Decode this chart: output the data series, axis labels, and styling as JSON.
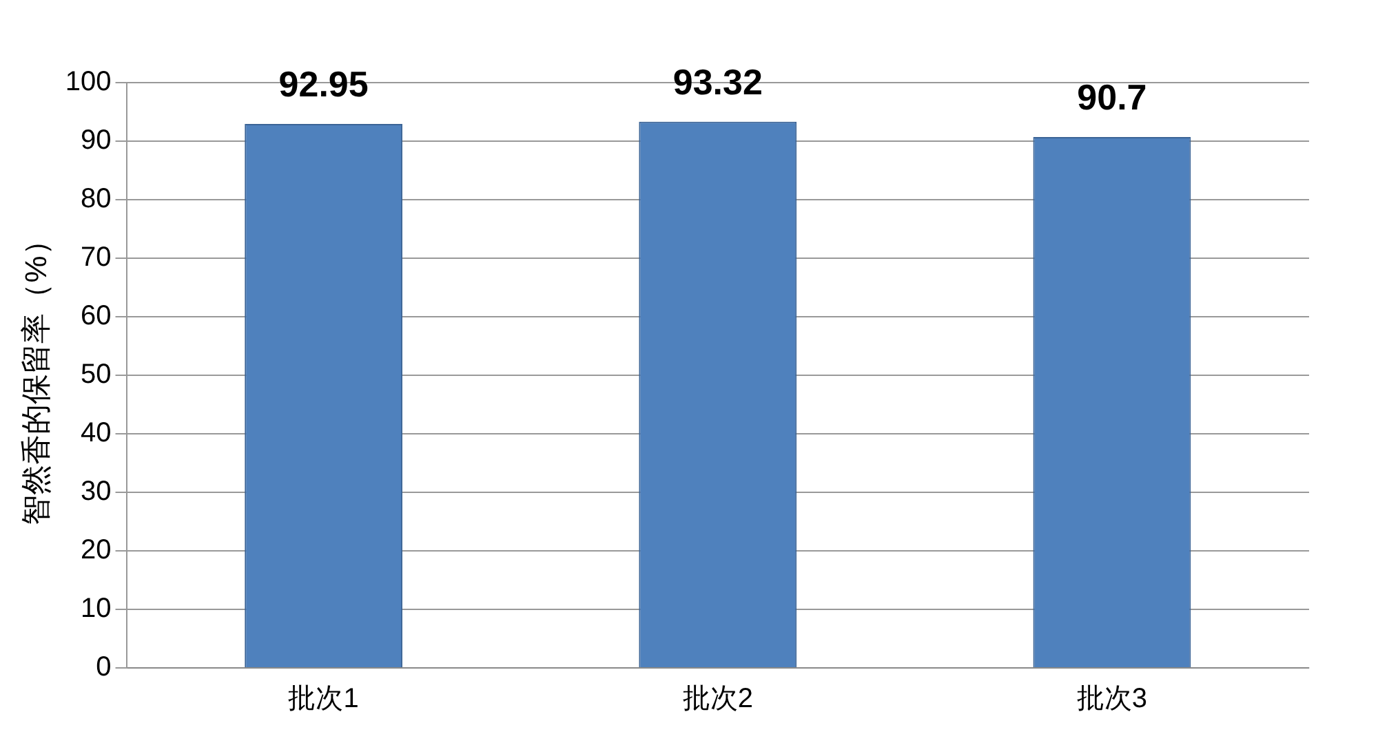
{
  "chart_data": {
    "type": "bar",
    "ylabel": "智然香的保留率（%）",
    "categories": [
      "批次1",
      "批次2",
      "批次3"
    ],
    "values": [
      92.95,
      93.32,
      90.7
    ],
    "color": "#4f81bd",
    "ylim": [
      0,
      100
    ],
    "yticks": [
      0,
      10,
      20,
      30,
      40,
      50,
      60,
      70,
      80,
      90,
      100
    ],
    "grid": true,
    "data_labels": true
  }
}
